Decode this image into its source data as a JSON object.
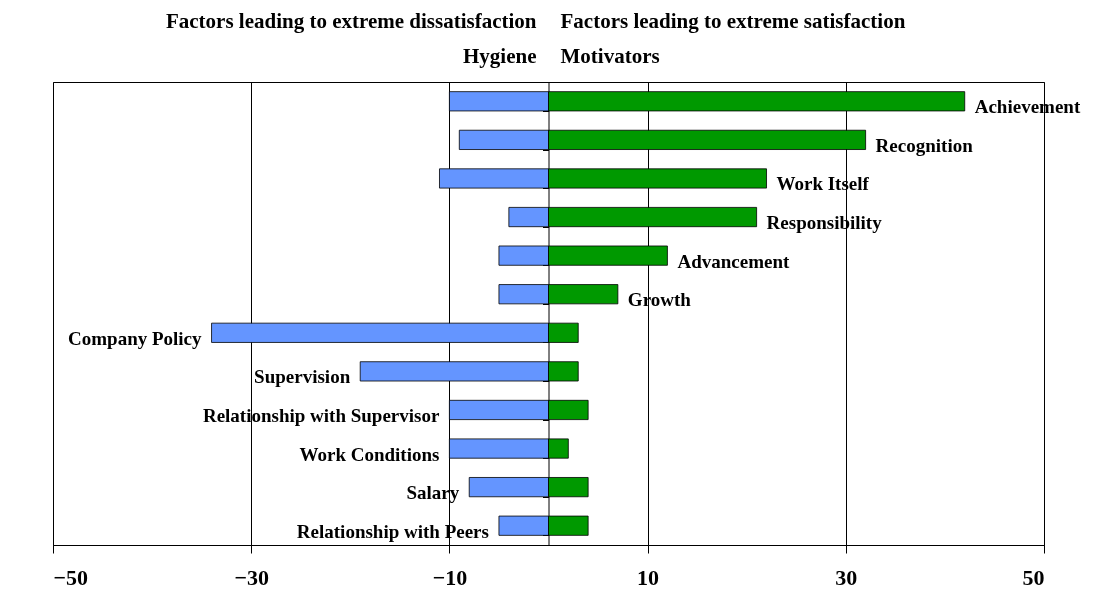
{
  "chart_data": {
    "type": "bar",
    "orientation": "horizontal",
    "stacked": true,
    "annotations": [
      "Factors leading to extreme dissatisfaction",
      "Factors leading to extreme satisfaction"
    ],
    "categories": [
      "Achievement",
      "Recognition",
      "Work Itself",
      "Responsibility",
      "Advancement",
      "Growth",
      "Company Policy",
      "Supervision",
      "Relationship with Supervisor",
      "Work Conditions",
      "Salary",
      "Relationship with Peers"
    ],
    "series": [
      {
        "name": "Hygiene",
        "color": "#6495ff",
        "values": [
          -10,
          -9,
          -11,
          -4,
          -5,
          -5,
          -34,
          -19,
          -10,
          -10,
          -8,
          -5
        ]
      },
      {
        "name": "Motivators",
        "color": "#009900",
        "values": [
          42,
          32,
          22,
          21,
          12,
          7,
          3,
          3,
          4,
          2,
          4,
          4
        ]
      }
    ],
    "xlim": [
      -50,
      50
    ],
    "xticks": [
      -50,
      -30,
      -10,
      10,
      30,
      50
    ],
    "grid": "x",
    "legend": false
  }
}
